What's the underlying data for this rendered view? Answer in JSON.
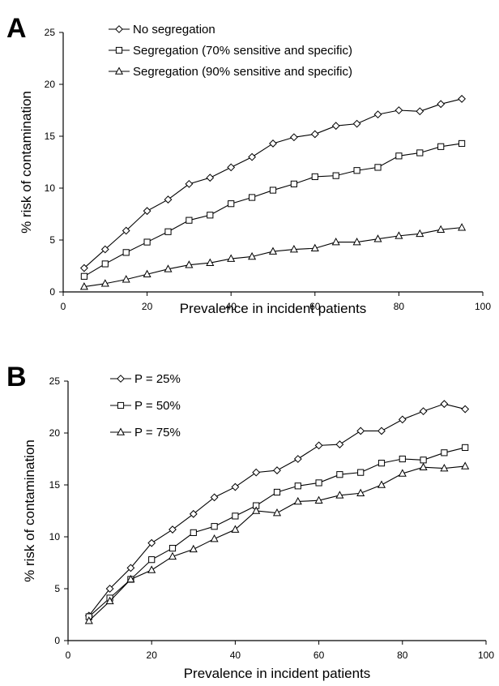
{
  "chart_data": [
    {
      "type": "line",
      "panel_label": "A",
      "xlabel": "Prevalence in incident patients",
      "ylabel": "% risk of contamination",
      "xlim": [
        0,
        100
      ],
      "ylim": [
        0,
        25
      ],
      "xticks": [
        "0",
        "20",
        "40",
        "60",
        "80",
        "100"
      ],
      "yticks": [
        "0",
        "5",
        "10",
        "15",
        "20",
        "25"
      ],
      "grid": false,
      "legend_position": "top-left",
      "x": [
        5,
        10,
        15,
        20,
        25,
        30,
        35,
        40,
        45,
        50,
        55,
        60,
        65,
        70,
        75,
        80,
        85,
        90,
        95
      ],
      "series": [
        {
          "name": "No segregation",
          "marker": "diamond",
          "values": [
            2.3,
            4.1,
            5.9,
            7.8,
            8.9,
            10.4,
            11.0,
            12.0,
            13.0,
            14.3,
            14.9,
            15.2,
            16.0,
            16.2,
            17.1,
            17.5,
            17.4,
            18.1,
            18.6
          ]
        },
        {
          "name": "Segregation (70% sensitive and specific)",
          "marker": "square",
          "values": [
            1.5,
            2.7,
            3.8,
            4.8,
            5.8,
            6.9,
            7.4,
            8.5,
            9.1,
            9.8,
            10.4,
            11.1,
            11.2,
            11.7,
            12.0,
            13.1,
            13.4,
            14.0,
            14.3
          ]
        },
        {
          "name": "Segregation (90% sensitive and specific)",
          "marker": "triangle",
          "values": [
            0.5,
            0.8,
            1.2,
            1.7,
            2.2,
            2.6,
            2.8,
            3.2,
            3.4,
            3.9,
            4.1,
            4.2,
            4.8,
            4.8,
            5.1,
            5.4,
            5.6,
            6.0,
            6.2
          ]
        }
      ]
    },
    {
      "type": "line",
      "panel_label": "B",
      "xlabel": "Prevalence in incident patients",
      "ylabel": "% risk of contamination",
      "xlim": [
        0,
        100
      ],
      "ylim": [
        0,
        25
      ],
      "xticks": [
        "0",
        "20",
        "40",
        "60",
        "80",
        "100"
      ],
      "yticks": [
        "0",
        "5",
        "10",
        "15",
        "20",
        "25"
      ],
      "grid": false,
      "legend_position": "top-left",
      "x": [
        5,
        10,
        15,
        20,
        25,
        30,
        35,
        40,
        45,
        50,
        55,
        60,
        65,
        70,
        75,
        80,
        85,
        90,
        95
      ],
      "series": [
        {
          "name": "P = 25%",
          "marker": "diamond",
          "values": [
            2.4,
            5.0,
            7.0,
            9.4,
            10.7,
            12.2,
            13.8,
            14.8,
            16.2,
            16.4,
            17.5,
            18.8,
            18.9,
            20.2,
            20.2,
            21.3,
            22.1,
            22.8,
            22.3
          ]
        },
        {
          "name": "P = 50%",
          "marker": "square",
          "values": [
            2.3,
            4.1,
            5.9,
            7.8,
            8.9,
            10.4,
            11.0,
            12.0,
            13.0,
            14.3,
            14.9,
            15.2,
            16.0,
            16.2,
            17.1,
            17.5,
            17.4,
            18.1,
            18.6
          ]
        },
        {
          "name": "P = 75%",
          "marker": "triangle",
          "values": [
            1.9,
            3.8,
            5.9,
            6.8,
            8.1,
            8.8,
            9.8,
            10.7,
            12.5,
            12.3,
            13.4,
            13.5,
            14.0,
            14.2,
            15.0,
            16.1,
            16.7,
            16.6,
            16.8
          ]
        }
      ]
    }
  ]
}
